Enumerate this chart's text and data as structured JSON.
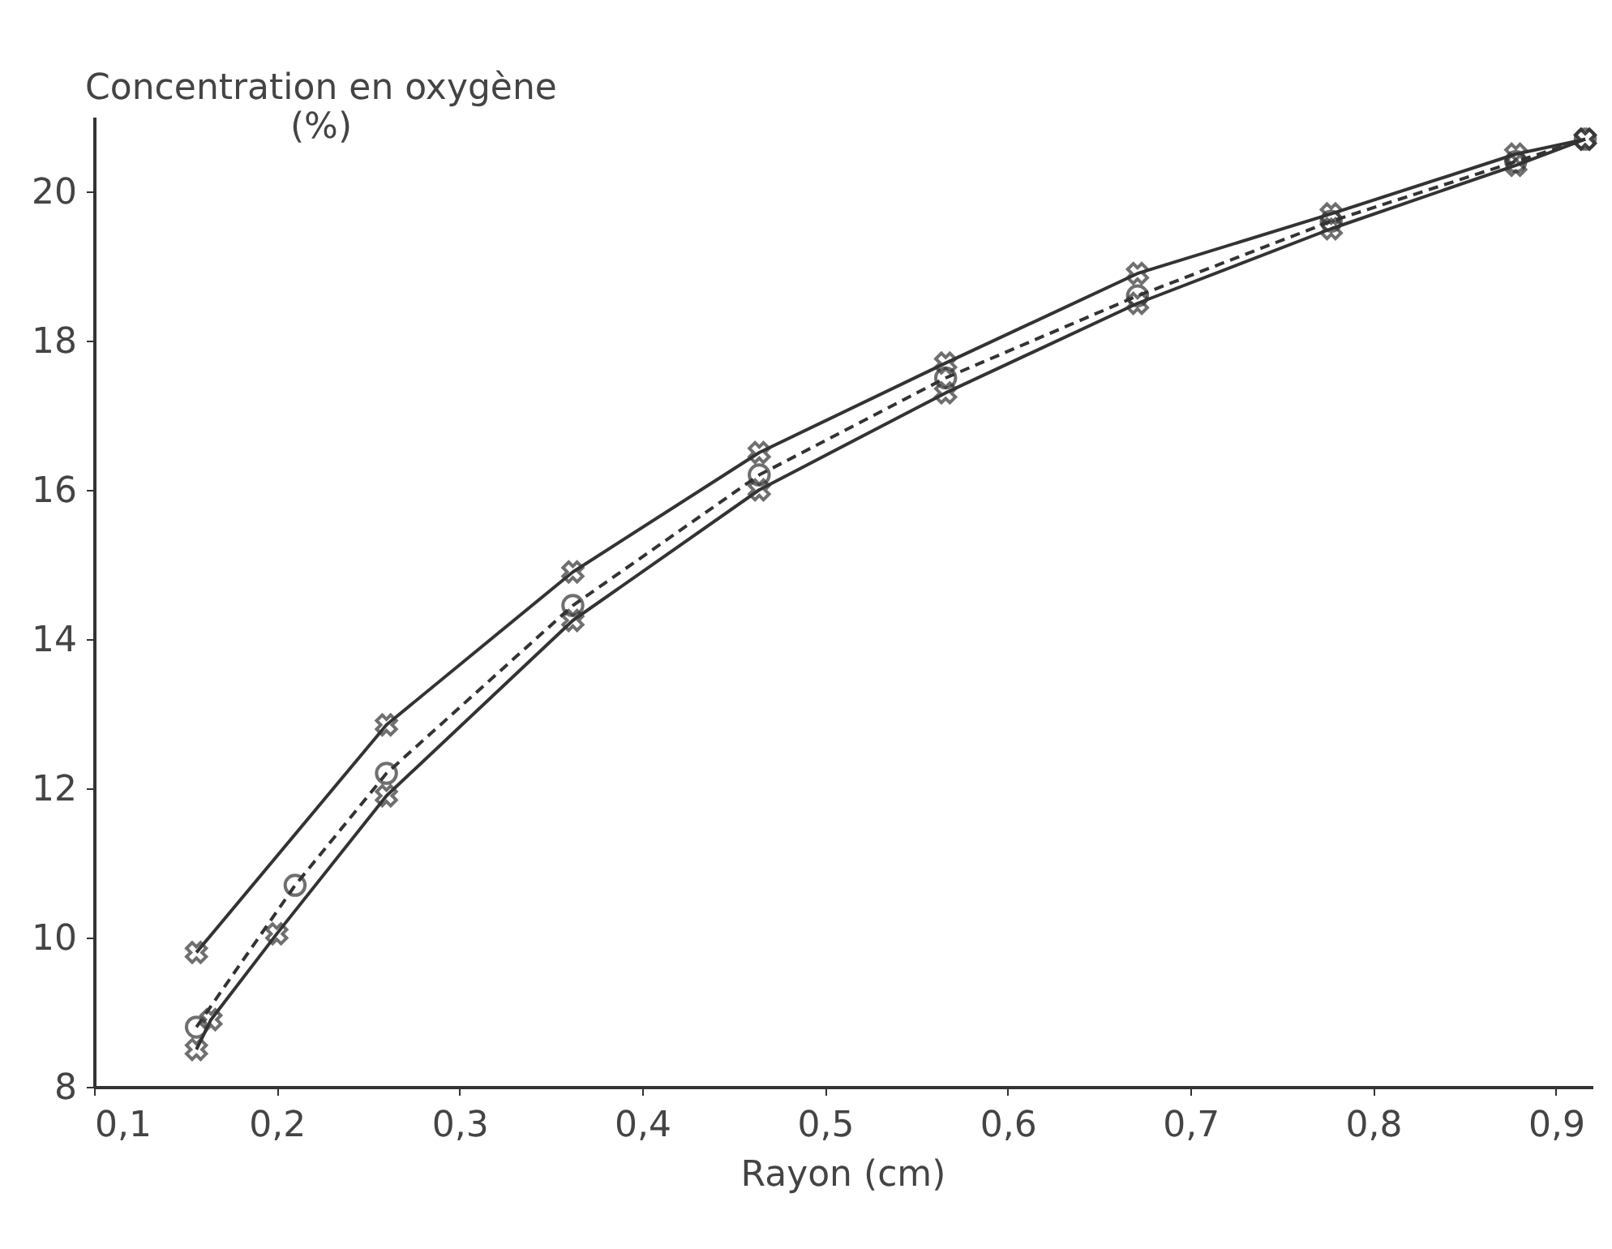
{
  "chart_data": {
    "type": "line",
    "xlabel": "Rayon (cm)",
    "ylabel": "Concentration en oxygène (%)",
    "xlim": [
      0.1,
      0.92
    ],
    "ylim": [
      8,
      21
    ],
    "xticks": [
      {
        "value": 0.1,
        "label": "0,1"
      },
      {
        "value": 0.2,
        "label": "0,2"
      },
      {
        "value": 0.3,
        "label": "0,3"
      },
      {
        "value": 0.4,
        "label": "0,4"
      },
      {
        "value": 0.5,
        "label": "0,5"
      },
      {
        "value": 0.6,
        "label": "0,6"
      },
      {
        "value": 0.7,
        "label": "0,7"
      },
      {
        "value": 0.8,
        "label": "0,8"
      },
      {
        "value": 0.9,
        "label": "0,9"
      }
    ],
    "yticks": [
      8,
      10,
      12,
      14,
      16,
      18,
      20
    ],
    "grid": false,
    "series": [
      {
        "color": "#333333",
        "marker": "cross",
        "line_style": "solid",
        "x": [
          0.156,
          0.26,
          0.362,
          0.464,
          0.566,
          0.671,
          0.777,
          0.878,
          0.916
        ],
        "values": [
          9.8,
          12.85,
          14.9,
          16.5,
          17.7,
          18.9,
          19.7,
          20.5,
          20.7
        ]
      },
      {
        "color": "#333333",
        "marker": "circle",
        "line_style": "dashed",
        "x": [
          0.156,
          0.21,
          0.26,
          0.362,
          0.464,
          0.566,
          0.671,
          0.777,
          0.878,
          0.916
        ],
        "values": [
          8.8,
          10.7,
          12.2,
          14.45,
          16.2,
          17.5,
          18.6,
          19.6,
          20.4,
          20.7
        ]
      },
      {
        "color": "#333333",
        "marker": "cross",
        "line_style": "solid",
        "x": [
          0.156,
          0.164,
          0.2,
          0.26,
          0.362,
          0.464,
          0.566,
          0.671,
          0.777,
          0.878,
          0.916
        ],
        "values": [
          8.5,
          8.9,
          10.05,
          11.9,
          14.25,
          16.0,
          17.3,
          18.5,
          19.5,
          20.35,
          20.7
        ]
      }
    ]
  }
}
